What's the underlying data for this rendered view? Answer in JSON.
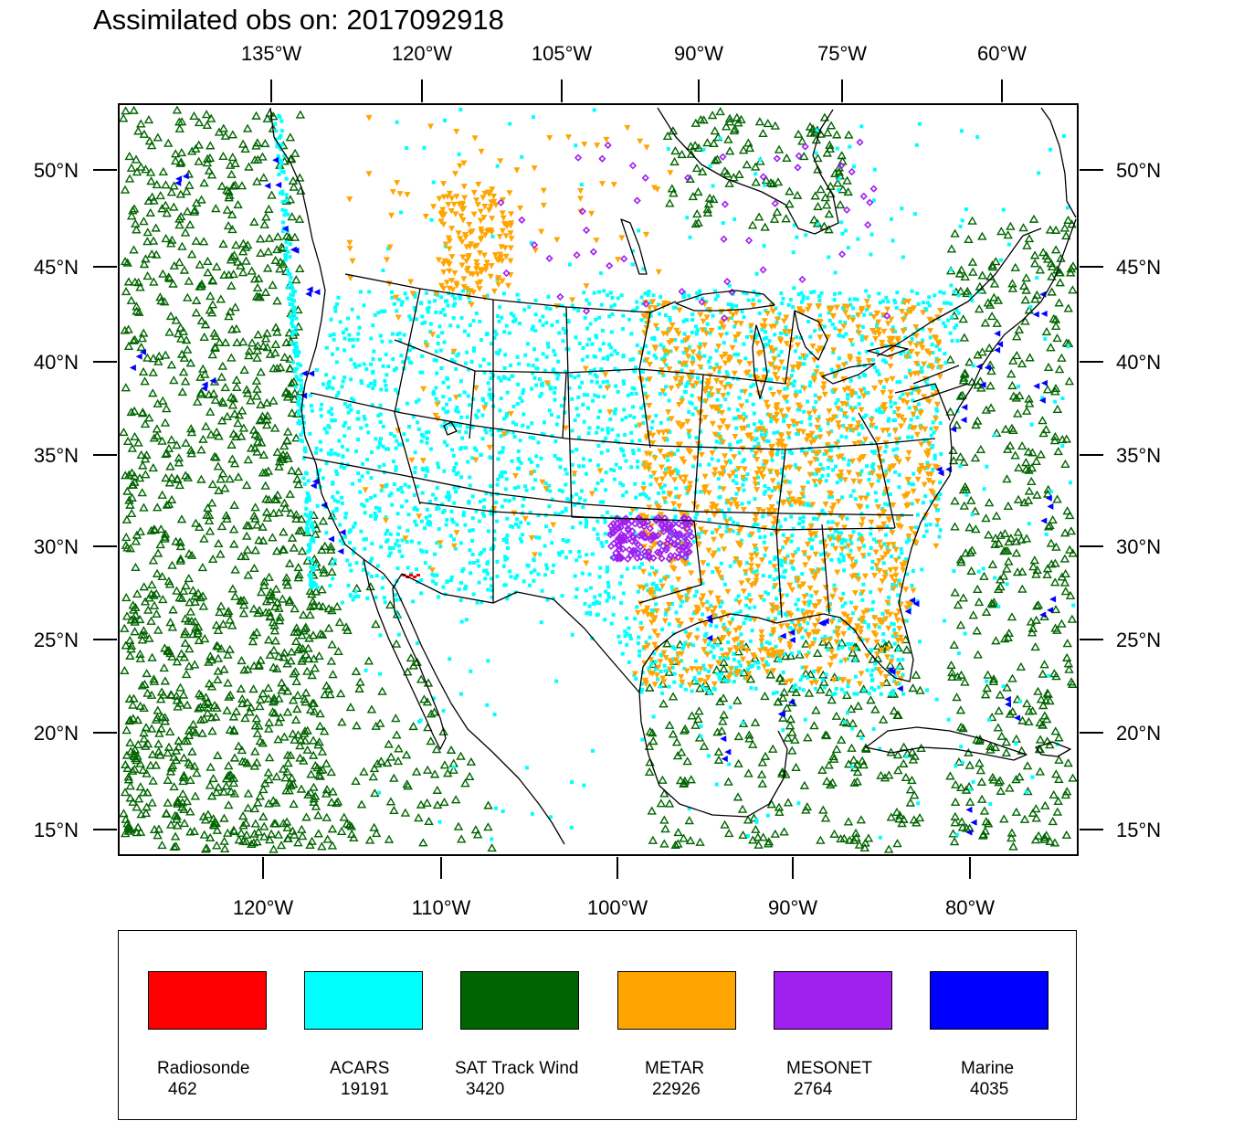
{
  "title": "Assimilated obs on: 2017092918",
  "map": {
    "top_lon_ticks": [
      "135°W",
      "120°W",
      "105°W",
      "90°W",
      "75°W",
      "60°W"
    ],
    "bottom_lon_ticks": [
      "120°W",
      "110°W",
      "100°W",
      "90°W",
      "80°W"
    ],
    "lat_ticks": [
      "50°N",
      "45°N",
      "40°N",
      "35°N",
      "30°N",
      "25°N",
      "20°N",
      "15°N"
    ],
    "land_color": "#ffffff",
    "outline_color": "#000000"
  },
  "legend": {
    "items": [
      {
        "name": "Radiosonde",
        "count": "462",
        "color": "#ff0000",
        "marker": "square"
      },
      {
        "name": "ACARS",
        "count": "19191",
        "color": "#00ffff",
        "marker": "square"
      },
      {
        "name": "SAT Track Wind",
        "count": "3420",
        "color": "#006400",
        "marker": "triangle-up-outline"
      },
      {
        "name": "METAR",
        "count": "22926",
        "color": "#ffa500",
        "marker": "triangle-down"
      },
      {
        "name": "MESONET",
        "count": "2764",
        "color": "#a020f0",
        "marker": "diamond"
      },
      {
        "name": "Marine",
        "count": "4035",
        "color": "#0000ff",
        "marker": "triangle-left"
      }
    ]
  }
}
